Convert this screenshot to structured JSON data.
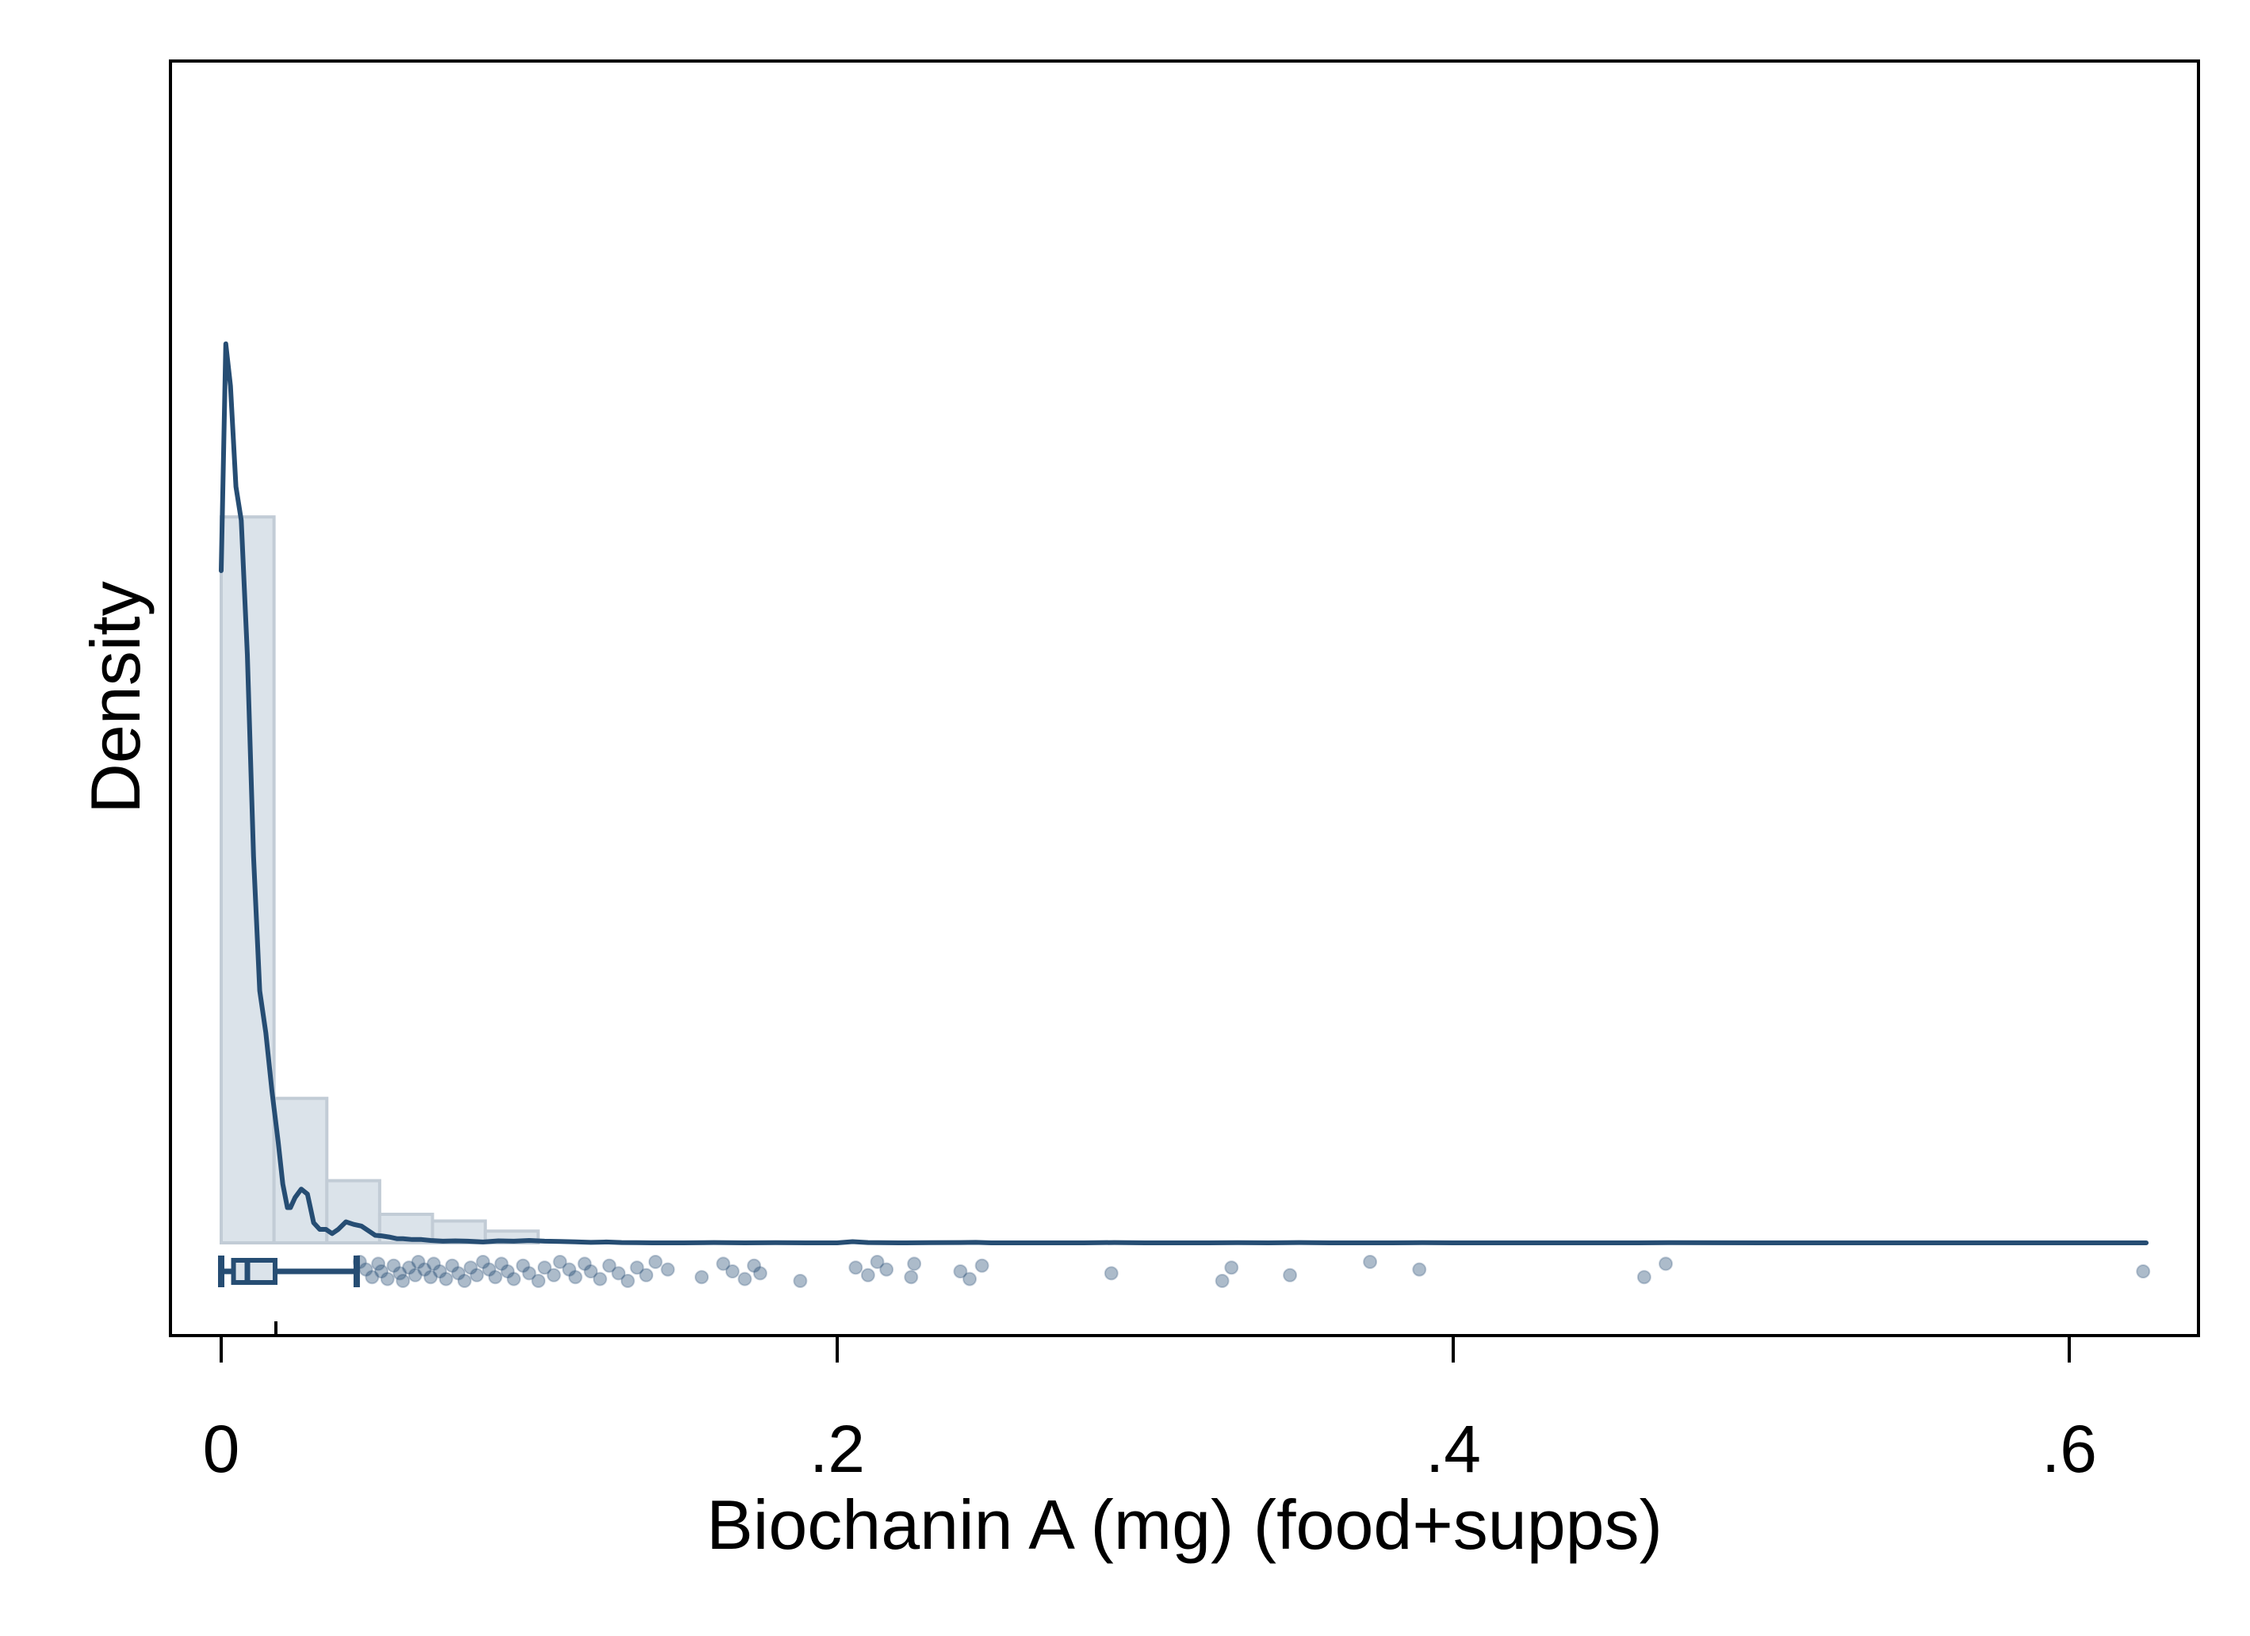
{
  "chart_data": {
    "type": "histogram",
    "xlabel": "Biochanin A (mg) (food+supps)",
    "ylabel": "Density",
    "xlim": [
      -0.017,
      0.643
    ],
    "xticks": [
      0,
      0.2,
      0.4,
      0.6
    ],
    "xtick_labels": [
      "0",
      ".2",
      ".4",
      ".6"
    ],
    "yticks_shown": false,
    "colors": {
      "bar_fill": "#dbe3ea",
      "bar_stroke": "#c2ccd6",
      "line": "#264d73",
      "dots": "#264d73",
      "frame": "#000000"
    },
    "histogram": {
      "bin_width": 0.01715,
      "bin_start": 0,
      "densities": [
        43.2,
        8.6,
        3.7,
        1.7,
        1.3,
        0.7
      ]
    },
    "kde": {
      "x": [
        0,
        0.0015,
        0.003,
        0.0048,
        0.0065,
        0.0085,
        0.0105,
        0.0125,
        0.0145,
        0.0165,
        0.0185,
        0.02,
        0.0215,
        0.0225,
        0.024,
        0.026,
        0.028,
        0.03,
        0.032,
        0.034,
        0.036,
        0.038,
        0.0405,
        0.043,
        0.0455,
        0.048,
        0.05,
        0.052,
        0.0545,
        0.057,
        0.059,
        0.062,
        0.065,
        0.068,
        0.072,
        0.076,
        0.08,
        0.085,
        0.09,
        0.095,
        0.1,
        0.105,
        0.11,
        0.115,
        0.12,
        0.125,
        0.13,
        0.135,
        0.14,
        0.15,
        0.16,
        0.17,
        0.18,
        0.19,
        0.2,
        0.205,
        0.21,
        0.22,
        0.23,
        0.24,
        0.245,
        0.25,
        0.26,
        0.28,
        0.29,
        0.3,
        0.32,
        0.33,
        0.34,
        0.35,
        0.36,
        0.38,
        0.39,
        0.4,
        0.45,
        0.46,
        0.47,
        0.5,
        0.55,
        0.6,
        0.625
      ],
      "density": [
        40,
        53.5,
        51,
        45,
        43,
        35,
        23,
        15,
        12.5,
        9,
        6,
        3.5,
        2.1,
        2.1,
        2.7,
        3.2,
        2.9,
        1.2,
        0.8,
        0.8,
        0.55,
        0.8,
        1.25,
        1.1,
        1.0,
        0.7,
        0.45,
        0.42,
        0.35,
        0.25,
        0.25,
        0.2,
        0.2,
        0.14,
        0.1,
        0.12,
        0.1,
        0.05,
        0.12,
        0.1,
        0.14,
        0.1,
        0.08,
        0.06,
        0.03,
        0.05,
        0.02,
        0.01,
        0.0,
        0.0,
        0.02,
        0.0,
        0.01,
        0.0,
        0.0,
        0.07,
        0.02,
        0.0,
        0.01,
        0.02,
        0.03,
        0.0,
        0.0,
        0.0,
        0.02,
        0.0,
        0.0,
        0.01,
        0.0,
        0.02,
        0.0,
        0.0,
        0.01,
        0.0,
        0.0,
        0.0,
        0.01,
        0.0,
        0.0,
        0.0,
        0.0
      ]
    },
    "boxplot": {
      "whisker_low": 0,
      "q1": 0.004,
      "median": 0.0085,
      "q3": 0.0175,
      "whisker_high": 0.044
    },
    "outliers": [
      0.045,
      0.047,
      0.049,
      0.051,
      0.052,
      0.054,
      0.056,
      0.058,
      0.059,
      0.061,
      0.063,
      0.064,
      0.066,
      0.068,
      0.069,
      0.071,
      0.073,
      0.075,
      0.077,
      0.079,
      0.081,
      0.083,
      0.085,
      0.087,
      0.089,
      0.091,
      0.093,
      0.095,
      0.098,
      0.1,
      0.103,
      0.105,
      0.108,
      0.11,
      0.113,
      0.115,
      0.118,
      0.12,
      0.123,
      0.126,
      0.129,
      0.132,
      0.135,
      0.138,
      0.141,
      0.145,
      0.156,
      0.163,
      0.166,
      0.17,
      0.173,
      0.175,
      0.188,
      0.206,
      0.21,
      0.213,
      0.216,
      0.224,
      0.225,
      0.24,
      0.243,
      0.247,
      0.289,
      0.325,
      0.328,
      0.347,
      0.373,
      0.389,
      0.462,
      0.469,
      0.624
    ]
  }
}
